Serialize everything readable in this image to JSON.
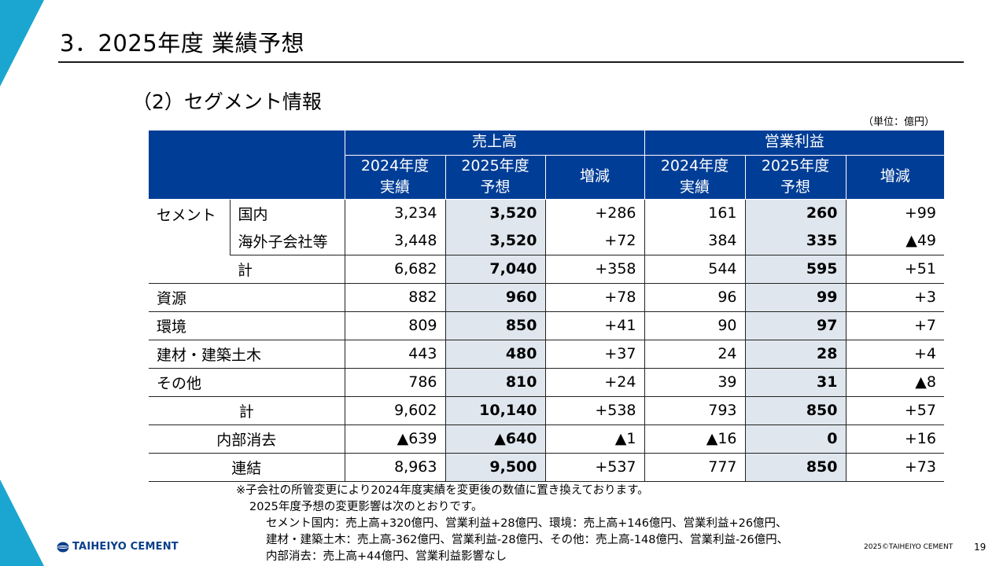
{
  "title": "3．2025年度 業績予想",
  "subtitle": "（2）セグメント情報",
  "unit": "（単位：億円）",
  "table": {
    "header": {
      "sales": "売上高",
      "profit": "営業利益",
      "actual_line1": "2024年度",
      "actual_line2": "実績",
      "forecast_line1": "2025年度",
      "forecast_line2": "予想",
      "change": "増減"
    },
    "rows": [
      {
        "cat": "セメント",
        "sub": "国内",
        "s24": "3,234",
        "s25": "3,520",
        "sd": "+286",
        "p24": "161",
        "p25": "260",
        "pd": "+99"
      },
      {
        "cat": "",
        "sub": "海外子会社等",
        "s24": "3,448",
        "s25": "3,520",
        "sd": "+72",
        "p24": "384",
        "p25": "335",
        "pd": "▲49"
      },
      {
        "cat": "",
        "sub": "計",
        "s24": "6,682",
        "s25": "7,040",
        "sd": "+358",
        "p24": "544",
        "p25": "595",
        "pd": "+51"
      },
      {
        "cat": "資源",
        "sub": "",
        "s24": "882",
        "s25": "960",
        "sd": "+78",
        "p24": "96",
        "p25": "99",
        "pd": "+3"
      },
      {
        "cat": "環境",
        "sub": "",
        "s24": "809",
        "s25": "850",
        "sd": "+41",
        "p24": "90",
        "p25": "97",
        "pd": "+7"
      },
      {
        "cat": "建材・建築土木",
        "sub": "",
        "s24": "443",
        "s25": "480",
        "sd": "+37",
        "p24": "24",
        "p25": "28",
        "pd": "+4"
      },
      {
        "cat": "その他",
        "sub": "",
        "s24": "786",
        "s25": "810",
        "sd": "+24",
        "p24": "39",
        "p25": "31",
        "pd": "▲8"
      },
      {
        "cat": "計",
        "sub": "",
        "s24": "9,602",
        "s25": "10,140",
        "sd": "+538",
        "p24": "793",
        "p25": "850",
        "pd": "+57"
      },
      {
        "cat": "内部消去",
        "sub": "",
        "s24": "▲639",
        "s25": "▲640",
        "sd": "▲1",
        "p24": "▲16",
        "p25": "0",
        "pd": "+16"
      },
      {
        "cat": "連結",
        "sub": "",
        "s24": "8,963",
        "s25": "9,500",
        "sd": "+537",
        "p24": "777",
        "p25": "850",
        "pd": "+73"
      }
    ]
  },
  "notes": [
    "※子会社の所管変更により2024年度実績を変更後の数値に置き換えております。",
    "2025年度予想の変更影響は次のとおりです。",
    "セメント国内：売上高+320億円、営業利益+28億円、環境：売上高+146億円、営業利益+26億円、",
    "建材・建築土木：売上高-362億円、営業利益-28億円、その他：売上高-148億円、営業利益-26億円、",
    "内部消去：売上高+44億円、営業利益影響なし"
  ],
  "logo_text": "TAIHEIYO CEMENT",
  "copyright": "2025©TAIHEIYO CEMENT",
  "page_number": "19",
  "colors": {
    "header_bg": "#003d96",
    "forecast_shade": "#dfe6ee",
    "accent": "#1aa6d0"
  }
}
